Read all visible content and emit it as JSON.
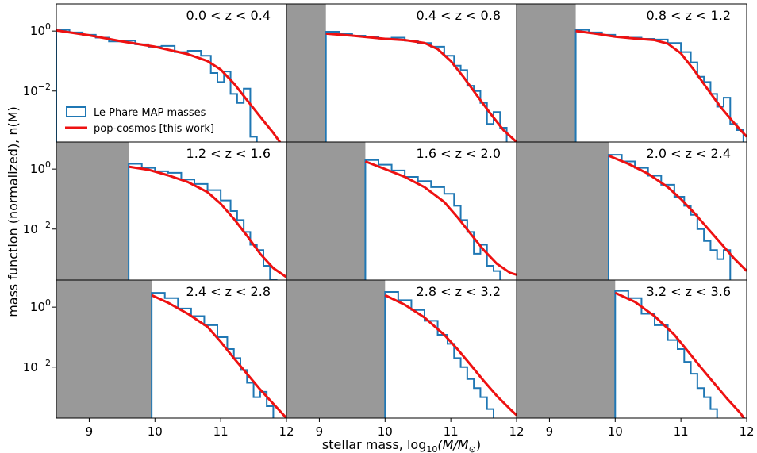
{
  "figure": {
    "xlabel_prefix": "stellar mass, log",
    "xlabel_sub": "10",
    "xlabel_suffix": "(M/M",
    "xlabel_sun": "⊙",
    "xlabel_close": ")",
    "ylabel": "mass function (normalized), n(M)",
    "legend": {
      "items": [
        {
          "label": "Le Phare MAP masses",
          "color": "#1f77b4",
          "style": "step"
        },
        {
          "label": "pop-cosmos [this work]",
          "color": "#ee1111",
          "style": "line"
        }
      ]
    },
    "colors": {
      "hist": "#1f77b4",
      "model": "#ee1111",
      "mask": "#999999"
    }
  },
  "chart_data": {
    "type": "line",
    "scale": "log",
    "xlim": [
      8.5,
      12.0
    ],
    "ylim": [
      0.0002,
      8
    ],
    "xticks": [
      9,
      10,
      11,
      12
    ],
    "xtick_labels": [
      "9",
      "10",
      "11",
      "12"
    ],
    "yticks": [
      {
        "value": 1,
        "base": "10",
        "exp": "0"
      },
      {
        "value": 0.01,
        "base": "10",
        "exp": "−2"
      }
    ],
    "panels": [
      {
        "label": "0.0 < z < 0.4",
        "mass_limit": 8.5,
        "model": {
          "x": [
            8.5,
            9.0,
            9.5,
            10.0,
            10.5,
            10.8,
            11.0,
            11.2,
            11.4,
            11.6,
            11.8,
            12.0
          ],
          "y": [
            1.05,
            0.72,
            0.45,
            0.3,
            0.17,
            0.1,
            0.052,
            0.018,
            0.005,
            0.0014,
            0.0004,
            0.0001
          ]
        },
        "hist": {
          "x": [
            8.5,
            8.7,
            8.9,
            9.1,
            9.3,
            9.5,
            9.7,
            9.9,
            10.1,
            10.3,
            10.5,
            10.7,
            10.85,
            10.95,
            11.05,
            11.15,
            11.25,
            11.35,
            11.45
          ],
          "y": [
            1.1,
            0.9,
            0.75,
            0.6,
            0.45,
            0.48,
            0.36,
            0.3,
            0.32,
            0.2,
            0.22,
            0.15,
            0.04,
            0.02,
            0.045,
            0.008,
            0.004,
            0.012,
            0.0003
          ]
        }
      },
      {
        "label": "0.4 < z < 0.8",
        "mass_limit": 9.1,
        "model": {
          "x": [
            9.1,
            9.5,
            10.0,
            10.3,
            10.6,
            10.8,
            11.0,
            11.2,
            11.4,
            11.6,
            11.8,
            12.0
          ],
          "y": [
            0.82,
            0.7,
            0.55,
            0.5,
            0.4,
            0.25,
            0.1,
            0.028,
            0.007,
            0.0018,
            0.0005,
            0.0002
          ]
        },
        "hist": {
          "x": [
            9.1,
            9.3,
            9.5,
            9.7,
            9.9,
            10.1,
            10.3,
            10.5,
            10.7,
            10.9,
            11.05,
            11.15,
            11.25,
            11.35,
            11.45,
            11.55,
            11.65,
            11.75
          ],
          "y": [
            0.95,
            0.8,
            0.7,
            0.65,
            0.56,
            0.6,
            0.48,
            0.4,
            0.3,
            0.15,
            0.07,
            0.05,
            0.015,
            0.01,
            0.004,
            0.0008,
            0.002,
            0.0006
          ]
        }
      },
      {
        "label": "0.8 < z < 1.2",
        "mass_limit": 9.4,
        "model": {
          "x": [
            9.4,
            9.7,
            10.0,
            10.3,
            10.6,
            10.8,
            11.0,
            11.2,
            11.4,
            11.6,
            11.8,
            12.0
          ],
          "y": [
            1.0,
            0.82,
            0.65,
            0.56,
            0.5,
            0.38,
            0.18,
            0.05,
            0.012,
            0.003,
            0.0009,
            0.0003
          ]
        },
        "hist": {
          "x": [
            9.4,
            9.6,
            9.8,
            10.0,
            10.2,
            10.4,
            10.6,
            10.8,
            11.0,
            11.15,
            11.25,
            11.35,
            11.45,
            11.55,
            11.65,
            11.75,
            11.85
          ],
          "y": [
            1.1,
            0.9,
            0.75,
            0.65,
            0.6,
            0.55,
            0.52,
            0.4,
            0.2,
            0.09,
            0.03,
            0.02,
            0.008,
            0.003,
            0.006,
            0.0008,
            0.0005
          ]
        }
      },
      {
        "label": "1.2 < z < 1.6",
        "mass_limit": 9.6,
        "model": {
          "x": [
            9.6,
            9.9,
            10.2,
            10.5,
            10.8,
            11.0,
            11.2,
            11.4,
            11.6,
            11.8,
            12.0
          ],
          "y": [
            1.2,
            0.95,
            0.62,
            0.37,
            0.17,
            0.07,
            0.022,
            0.006,
            0.0015,
            0.0005,
            0.00025
          ]
        },
        "hist": {
          "x": [
            9.6,
            9.8,
            10.0,
            10.2,
            10.4,
            10.6,
            10.8,
            11.0,
            11.15,
            11.25,
            11.35,
            11.45,
            11.55,
            11.65,
            11.75
          ],
          "y": [
            1.5,
            1.1,
            0.85,
            0.75,
            0.45,
            0.32,
            0.2,
            0.09,
            0.04,
            0.02,
            0.008,
            0.003,
            0.002,
            0.0006,
            0.0002
          ]
        }
      },
      {
        "label": "1.6 < z < 2.0",
        "mass_limit": 9.7,
        "model": {
          "x": [
            9.7,
            10.0,
            10.3,
            10.6,
            10.9,
            11.1,
            11.3,
            11.5,
            11.7,
            11.9,
            12.0
          ],
          "y": [
            1.8,
            1.0,
            0.55,
            0.25,
            0.08,
            0.025,
            0.007,
            0.002,
            0.0007,
            0.00035,
            0.0003
          ]
        },
        "hist": {
          "x": [
            9.7,
            9.9,
            10.1,
            10.3,
            10.5,
            10.7,
            10.9,
            11.05,
            11.15,
            11.25,
            11.35,
            11.45,
            11.55,
            11.65
          ],
          "y": [
            2.0,
            1.4,
            0.9,
            0.55,
            0.4,
            0.25,
            0.15,
            0.06,
            0.02,
            0.008,
            0.0015,
            0.003,
            0.0006,
            0.0004
          ]
        }
      },
      {
        "label": "2.0 < z < 2.4",
        "mass_limit": 9.9,
        "model": {
          "x": [
            9.9,
            10.2,
            10.5,
            10.8,
            11.0,
            11.2,
            11.4,
            11.6,
            11.8,
            12.0
          ],
          "y": [
            2.8,
            1.5,
            0.7,
            0.25,
            0.1,
            0.035,
            0.011,
            0.0035,
            0.0011,
            0.0004
          ]
        },
        "hist": {
          "x": [
            9.9,
            10.1,
            10.3,
            10.5,
            10.7,
            10.9,
            11.05,
            11.15,
            11.25,
            11.35,
            11.45,
            11.55,
            11.65
          ],
          "y": [
            3.0,
            1.8,
            1.1,
            0.6,
            0.3,
            0.12,
            0.06,
            0.03,
            0.01,
            0.004,
            0.002,
            0.001,
            0.002
          ]
        }
      },
      {
        "label": "2.4 < z < 2.8",
        "mass_limit": 9.95,
        "model": {
          "x": [
            9.95,
            10.2,
            10.5,
            10.8,
            11.0,
            11.2,
            11.4,
            11.6,
            11.8,
            12.0
          ],
          "y": [
            2.5,
            1.4,
            0.6,
            0.22,
            0.07,
            0.02,
            0.006,
            0.0018,
            0.0006,
            0.0002
          ]
        },
        "hist": {
          "x": [
            9.95,
            10.15,
            10.35,
            10.55,
            10.75,
            10.95,
            11.1,
            11.2,
            11.3,
            11.4,
            11.5,
            11.6,
            11.7
          ],
          "y": [
            3.0,
            2.0,
            0.9,
            0.5,
            0.25,
            0.1,
            0.04,
            0.02,
            0.008,
            0.003,
            0.001,
            0.0015,
            0.0005
          ]
        }
      },
      {
        "label": "2.8 < z < 3.2",
        "mass_limit": 10.0,
        "model": {
          "x": [
            10.0,
            10.3,
            10.6,
            10.9,
            11.1,
            11.3,
            11.5,
            11.7,
            11.9,
            12.0
          ],
          "y": [
            2.5,
            1.2,
            0.45,
            0.12,
            0.04,
            0.012,
            0.0035,
            0.0011,
            0.0004,
            0.00025
          ]
        },
        "hist": {
          "x": [
            10.0,
            10.2,
            10.4,
            10.6,
            10.8,
            10.95,
            11.05,
            11.15,
            11.25,
            11.35,
            11.45,
            11.55
          ],
          "y": [
            3.2,
            1.7,
            0.8,
            0.35,
            0.12,
            0.06,
            0.02,
            0.01,
            0.004,
            0.002,
            0.001,
            0.0004
          ]
        }
      },
      {
        "label": "3.2 < z < 3.6",
        "mass_limit": 10.0,
        "model": {
          "x": [
            10.0,
            10.3,
            10.6,
            10.9,
            11.1,
            11.3,
            11.5,
            11.7,
            11.9,
            12.0
          ],
          "y": [
            3.0,
            1.5,
            0.5,
            0.12,
            0.035,
            0.01,
            0.003,
            0.0009,
            0.0003,
            0.00015
          ]
        },
        "hist": {
          "x": [
            10.0,
            10.2,
            10.4,
            10.6,
            10.8,
            10.95,
            11.05,
            11.15,
            11.25,
            11.35,
            11.45
          ],
          "y": [
            3.5,
            2.0,
            0.6,
            0.25,
            0.08,
            0.04,
            0.015,
            0.006,
            0.002,
            0.001,
            0.0004
          ]
        }
      }
    ]
  }
}
